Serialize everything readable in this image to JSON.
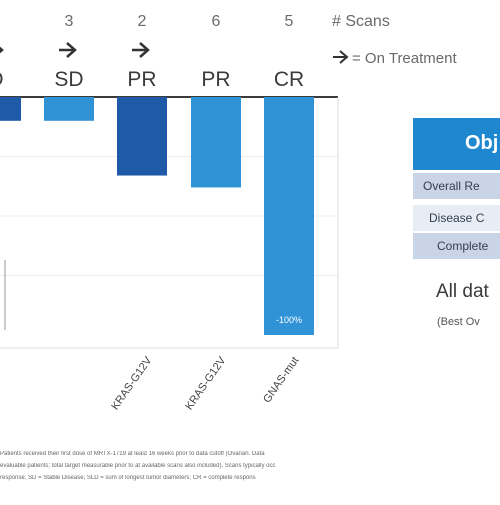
{
  "header": {
    "scans_label": "# Scans",
    "on_treatment_label": "= On Treatment"
  },
  "chart_data": {
    "type": "bar",
    "categories": [
      "",
      "",
      "KRAS-G12V",
      "KRAS-G12V",
      "GNAS-mut"
    ],
    "scan_counts": [
      "",
      "3",
      "2",
      "6",
      "5"
    ],
    "on_treatment": [
      true,
      true,
      true,
      false,
      false
    ],
    "responses": [
      "D",
      "SD",
      "PR",
      "PR",
      "CR"
    ],
    "values": [
      -10,
      -10,
      -33,
      -38,
      -100
    ],
    "value_labels": [
      "",
      "",
      "",
      "",
      "-100%"
    ],
    "colors": [
      "#1f5aa8",
      "#2f93d6",
      "#1f5aa8",
      "#2f93d6",
      "#2f93d6"
    ],
    "ylim": [
      -100,
      0
    ]
  },
  "table": {
    "header": "Obj",
    "rows": [
      "Overall Re",
      "Disease C",
      "Complete"
    ]
  },
  "notes": {
    "all_data": "All dat",
    "best": "(Best Ov"
  },
  "footnotes": [
    "Patients received their first dose of MRTX-1719 at least 16 weeks prior to data cutoff (Ovarian. Data",
    "evaluable patients; total target measurable prior to at available scans also included). Scans typically occ",
    "response; SD = Stable Disease; SLD = sum of longest tumor diameters; CR = complete respons"
  ]
}
